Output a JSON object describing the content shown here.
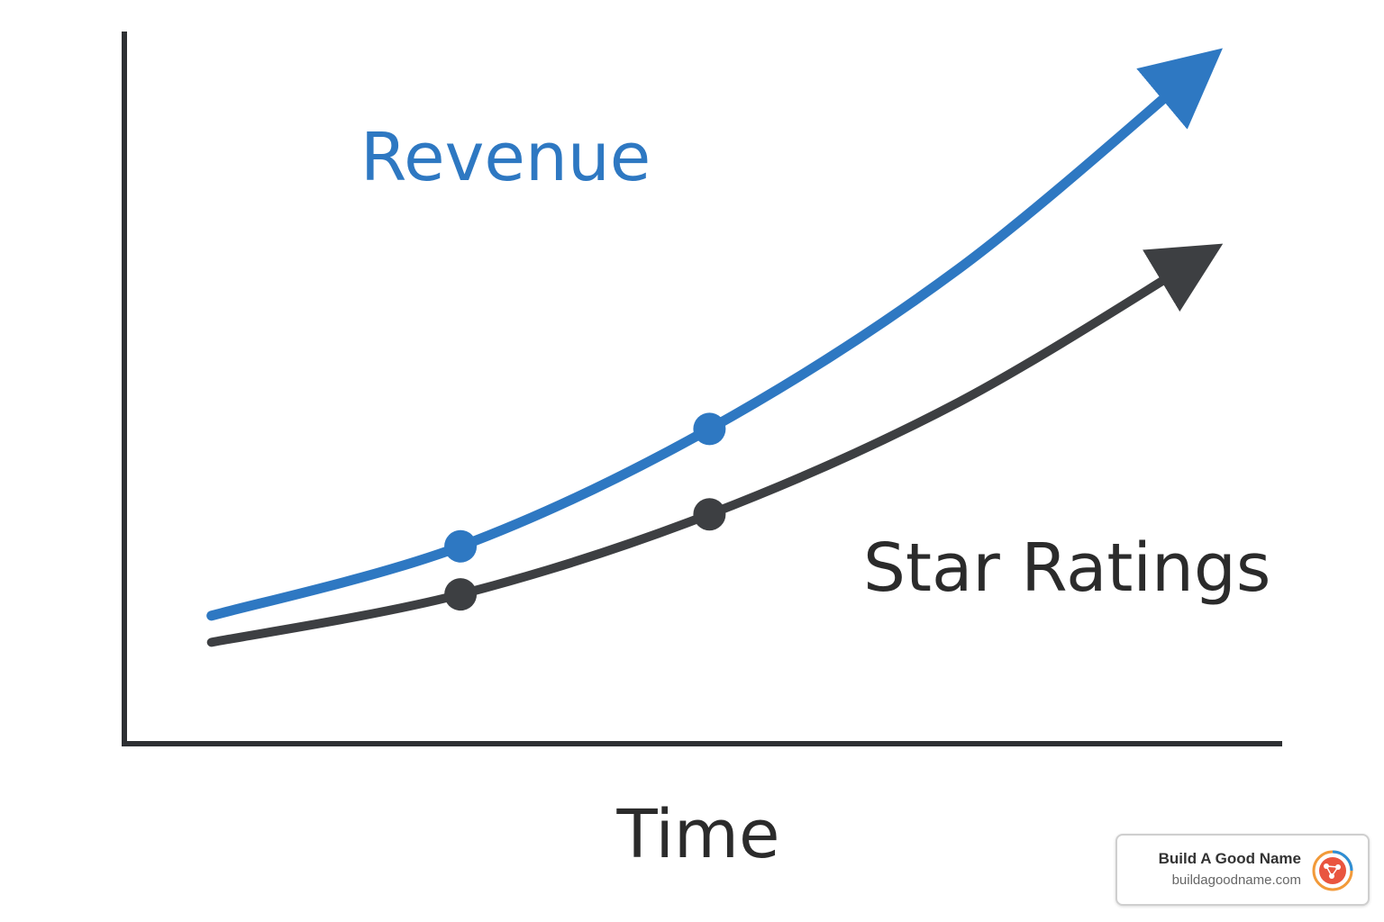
{
  "chart_data": {
    "type": "line",
    "xlabel": "Time",
    "ylabel": "",
    "grid": false,
    "legend": "none",
    "x": [
      0,
      1,
      2,
      3,
      4
    ],
    "series": [
      {
        "name": "Revenue",
        "color": "#2e78c2",
        "values": [
          20,
          33,
          55,
          85,
          124
        ],
        "markers": [
          1,
          2
        ]
      },
      {
        "name": "Star Ratings",
        "color": "#3d3f42",
        "values": [
          15,
          24,
          39,
          60,
          88
        ],
        "markers": [
          1,
          2
        ]
      }
    ],
    "xlim": [
      -0.35,
      4.3
    ],
    "ylim": [
      -4,
      129
    ]
  },
  "badge": {
    "name": "Build A Good Name",
    "url": "buildagoodname.com",
    "icon": "logo-icon"
  }
}
